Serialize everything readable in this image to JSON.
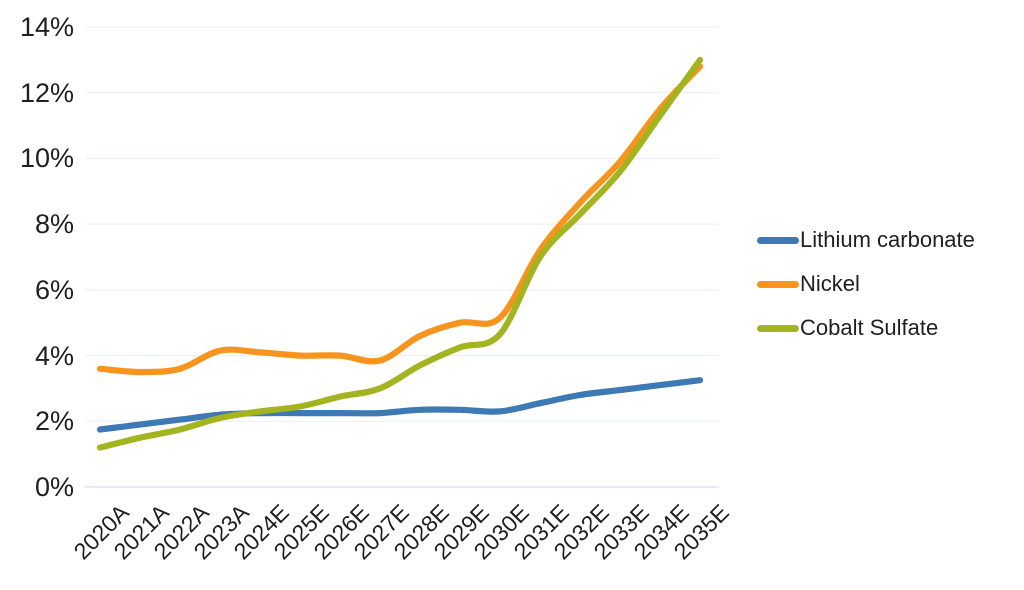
{
  "chart_data": {
    "type": "line",
    "title": "",
    "xlabel": "",
    "ylabel": "",
    "categories": [
      "2020A",
      "2021A",
      "2022A",
      "2023A",
      "2024E",
      "2025E",
      "2026E",
      "2027E",
      "2028E",
      "2029E",
      "2030E",
      "2031E",
      "2032E",
      "2033E",
      "2034E",
      "2035E"
    ],
    "series": [
      {
        "name": "Lithium carbonate",
        "color": "#3D7AB5",
        "values": [
          1.75,
          1.9,
          2.05,
          2.2,
          2.25,
          2.25,
          2.25,
          2.25,
          2.35,
          2.35,
          2.3,
          2.55,
          2.8,
          2.95,
          3.1,
          3.25
        ]
      },
      {
        "name": "Nickel",
        "color": "#F7941D",
        "values": [
          3.6,
          3.5,
          3.6,
          4.15,
          4.1,
          4.0,
          4.0,
          3.85,
          4.6,
          5.0,
          5.15,
          7.2,
          8.65,
          9.9,
          11.5,
          12.8
        ]
      },
      {
        "name": "Cobalt Sulfate",
        "color": "#A4B420",
        "values": [
          1.2,
          1.5,
          1.75,
          2.1,
          2.3,
          2.45,
          2.75,
          3.0,
          3.7,
          4.25,
          4.65,
          7.0,
          8.3,
          9.6,
          11.3,
          13.0
        ]
      }
    ],
    "ylim": [
      0,
      14
    ],
    "yticks": {
      "values": [
        0,
        2,
        4,
        6,
        8,
        10,
        12,
        14
      ],
      "labels": [
        "0%",
        "2%",
        "4%",
        "6%",
        "8%",
        "10%",
        "12%",
        "14%"
      ]
    },
    "grid": "horizontal",
    "legend_position": "right",
    "line_smoothing": true
  },
  "colors": {
    "background": "#FFFFFF",
    "gridline": "#EDF1F6",
    "baseline": "#D8E3EE",
    "text": "#1F1F1F"
  }
}
